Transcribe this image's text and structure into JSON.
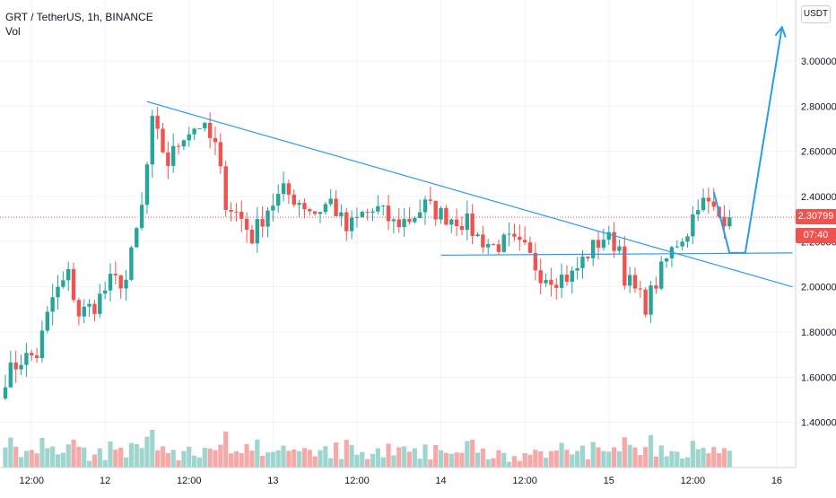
{
  "header": {
    "symbol_line": "GRT / TetherUS, 1h, BINANCE",
    "indicator_label": "Vol"
  },
  "price_axis": {
    "currency": "USDT",
    "last_price_label": "2.30799",
    "countdown_label": "07:40"
  },
  "colors": {
    "up": "#26a69a",
    "down": "#ef5350",
    "up_volume": "#9ed5cf",
    "down_volume": "#f6a9a7",
    "drawing": "#2b9de8",
    "grid": "#f0f3fa"
  },
  "chart_data": {
    "type": "candlestick",
    "title": "GRT / TetherUS, 1h, BINANCE",
    "ylim": [
      1.2,
      3.27
    ],
    "y_ticks": [
      1.4,
      1.6,
      1.8,
      2.0,
      2.2,
      2.4,
      2.6,
      2.8,
      3.0
    ],
    "y_tick_labels": [
      "1.40000",
      "1.60000",
      "1.80000",
      "2.00000",
      "2.20000",
      "2.40000",
      "2.60000",
      "2.80000",
      "3.00000"
    ],
    "x_ticks": [
      {
        "label": "12:00",
        "bar": 5
      },
      {
        "label": "12",
        "bar": 19
      },
      {
        "label": "12:00",
        "bar": 35
      },
      {
        "label": "13",
        "bar": 51
      },
      {
        "label": "12:00",
        "bar": 67
      },
      {
        "label": "14",
        "bar": 83
      },
      {
        "label": "12:00",
        "bar": 99
      },
      {
        "label": "15",
        "bar": 115
      },
      {
        "label": "12:00",
        "bar": 131
      },
      {
        "label": "16",
        "bar": 147
      }
    ],
    "bars": 139,
    "last_price": 2.30799,
    "price_anchors": [
      [
        0,
        1.6
      ],
      [
        3,
        1.68
      ],
      [
        6,
        1.7
      ],
      [
        9,
        1.95
      ],
      [
        12,
        2.05
      ],
      [
        14,
        1.88
      ],
      [
        17,
        1.92
      ],
      [
        20,
        2.02
      ],
      [
        23,
        2.03
      ],
      [
        26,
        2.35
      ],
      [
        28,
        2.72
      ],
      [
        31,
        2.55
      ],
      [
        34,
        2.68
      ],
      [
        37,
        2.72
      ],
      [
        40,
        2.62
      ],
      [
        42,
        2.38
      ],
      [
        45,
        2.3
      ],
      [
        47,
        2.22
      ],
      [
        50,
        2.35
      ],
      [
        53,
        2.42
      ],
      [
        56,
        2.38
      ],
      [
        59,
        2.33
      ],
      [
        62,
        2.38
      ],
      [
        65,
        2.25
      ],
      [
        68,
        2.32
      ],
      [
        71,
        2.34
      ],
      [
        74,
        2.28
      ],
      [
        77,
        2.3
      ],
      [
        80,
        2.36
      ],
      [
        83,
        2.32
      ],
      [
        86,
        2.3
      ],
      [
        88,
        2.28
      ],
      [
        90,
        2.22
      ],
      [
        93,
        2.18
      ],
      [
        96,
        2.2
      ],
      [
        99,
        2.16
      ],
      [
        102,
        2.06
      ],
      [
        105,
        2.04
      ],
      [
        108,
        2.05
      ],
      [
        111,
        2.15
      ],
      [
        114,
        2.22
      ],
      [
        117,
        2.18
      ],
      [
        118,
        2.05
      ],
      [
        120,
        1.98
      ],
      [
        122,
        1.92
      ],
      [
        124,
        2.02
      ],
      [
        126,
        2.12
      ],
      [
        128,
        2.2
      ],
      [
        130,
        2.25
      ],
      [
        132,
        2.38
      ],
      [
        134,
        2.36
      ],
      [
        136,
        2.31
      ]
    ],
    "volume_range": [
      0,
      2000000
    ],
    "drawings": [
      {
        "type": "trend-line",
        "points": [
          [
            27,
            2.82
          ],
          [
            150,
            2.0
          ]
        ]
      },
      {
        "type": "horizontal-line",
        "points": [
          [
            83,
            2.14
          ],
          [
            150,
            2.15
          ]
        ]
      },
      {
        "type": "projection",
        "points": [
          [
            135,
            2.42
          ],
          [
            138,
            2.15
          ],
          [
            141,
            2.15
          ],
          [
            148,
            3.15
          ]
        ]
      }
    ]
  }
}
